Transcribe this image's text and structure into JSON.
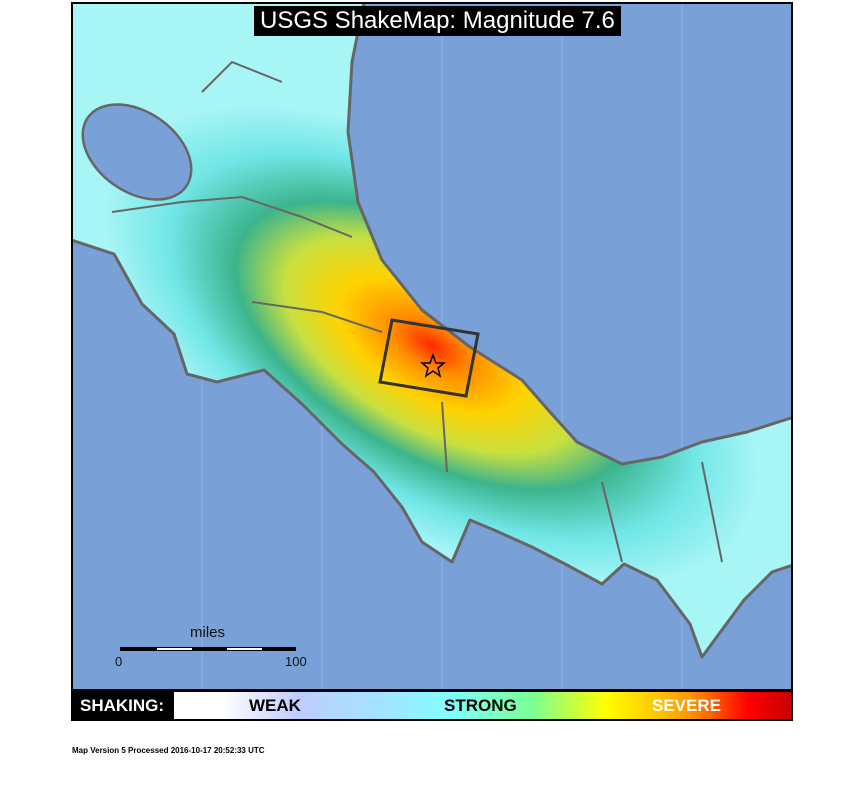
{
  "title": "USGS ShakeMap: Magnitude 7.6",
  "scale": {
    "unit_label": "miles",
    "start": "0",
    "end": "100"
  },
  "legend": {
    "label": "SHAKING:",
    "levels": [
      "WEAK",
      "STRONG",
      "SEVERE"
    ],
    "colors": [
      "#ffffff",
      "#bfccff",
      "#80ffff",
      "#7aff93",
      "#ffff00",
      "#ff9100",
      "#ff0000",
      "#c80000"
    ]
  },
  "footer": "Map Version 5 Processed 2016-10-17 20:52:33 UTC",
  "colors": {
    "ocean": "#7aa0d8",
    "border": "#666666",
    "epicenter": "star"
  }
}
